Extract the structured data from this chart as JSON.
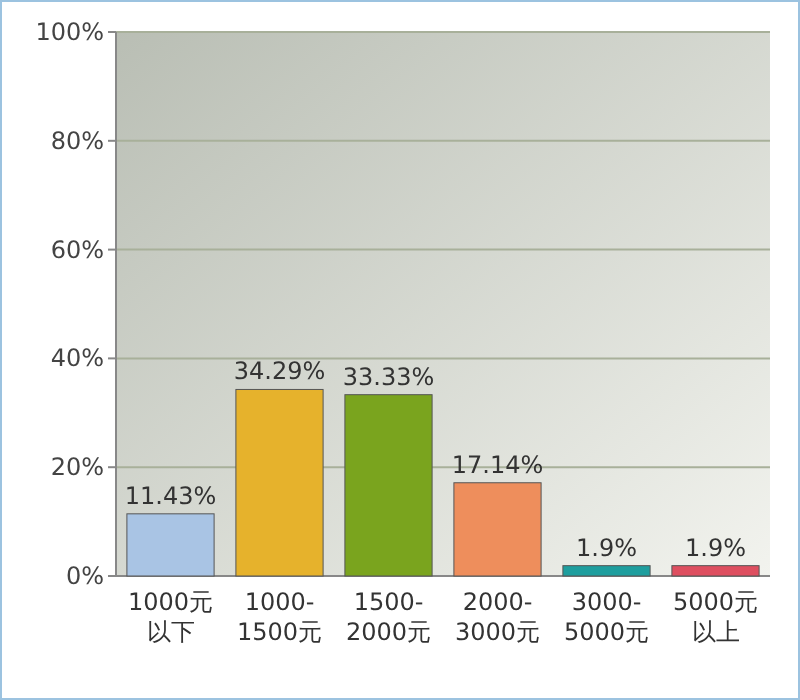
{
  "chart_data": {
    "type": "bar",
    "categories": [
      "1000元以下",
      "1000-\n1500元",
      "1500-\n2000元",
      "2000-\n3000元",
      "3000-\n5000元",
      "5000元以上"
    ],
    "values": [
      11.43,
      34.29,
      33.33,
      17.14,
      1.9,
      1.9
    ],
    "value_labels": [
      "11.43%",
      "34.29%",
      "33.33%",
      "17.14%",
      "1.9%",
      "1.9%"
    ],
    "colors": [
      "#a9c4e4",
      "#e6b22c",
      "#7aa41e",
      "#ee8e5c",
      "#1e9e9e",
      "#de4f60"
    ],
    "ylim": [
      0,
      100
    ],
    "yticks": [
      {
        "value": 0,
        "label": "0%"
      },
      {
        "value": 20,
        "label": "20%"
      },
      {
        "value": 40,
        "label": "40%"
      },
      {
        "value": 60,
        "label": "60%"
      },
      {
        "value": 80,
        "label": "80%"
      },
      {
        "value": 100,
        "label": "100%"
      }
    ],
    "grid": "y"
  }
}
